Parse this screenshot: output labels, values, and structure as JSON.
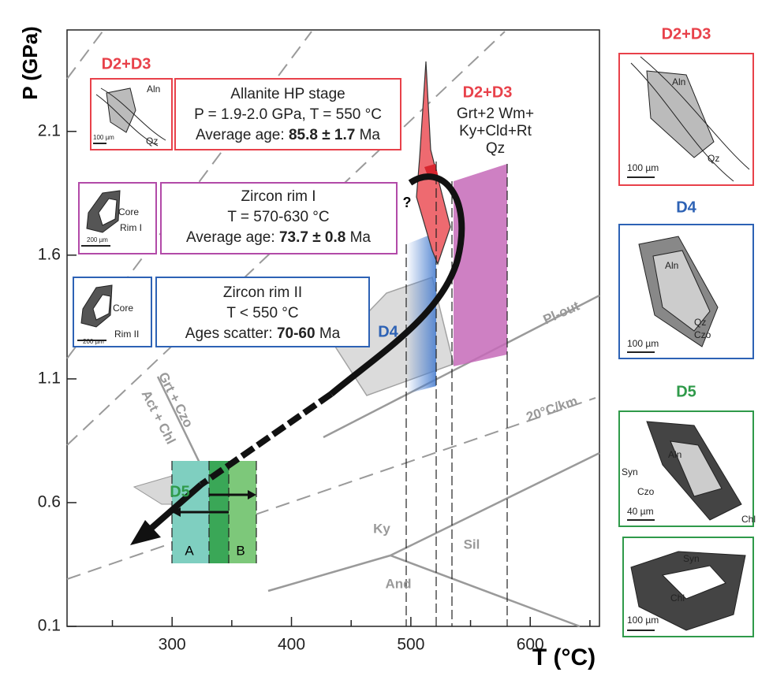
{
  "chart_data": {
    "type": "pt-diagram",
    "xlabel": "T (°C)",
    "ylabel": "P (GPa)",
    "xlim": [
      212,
      658
    ],
    "ylim": [
      0.1,
      2.51
    ],
    "xticks": [
      300,
      400,
      500,
      600
    ],
    "xminorticks": [
      250,
      350,
      450,
      550,
      650
    ],
    "yticks": [
      0.1,
      0.6,
      1.1,
      1.6,
      2.1
    ]
  },
  "boxes": [
    {
      "stage": "D2+D3",
      "title": "Allanite HP stage",
      "line2": "P = 1.9-2.0 GPa, T = 550 °C",
      "age_pre": "Average age: ",
      "age_bold": "85.8 ± 1.7",
      "age_post": " Ma",
      "inset": [
        "Aln",
        "Qz",
        "100 µm"
      ]
    },
    {
      "title": "Zircon rim I",
      "line2": "T = 570-630 °C",
      "age_pre": "Average age: ",
      "age_bold": "73.7 ± 0.8",
      "age_post": " Ma",
      "inset": [
        "Core",
        "Rim I",
        "200 µm"
      ]
    },
    {
      "title": "Zircon rim II",
      "line2": "T < 550 °C",
      "age_pre": "Ages scatter: ",
      "age_bold": "70-60",
      "age_post": " Ma",
      "inset": [
        "Core",
        "Rim II",
        "200 µm"
      ]
    }
  ],
  "fields": {
    "stage": "D2+D3",
    "assemblage": [
      "Grt+2 Wm+",
      "Ky+Cld+Rt",
      "Qz"
    ],
    "question": "?",
    "d4": "D4",
    "d5": "D5",
    "a": "A",
    "b": "B",
    "plout": "Pl-out",
    "geotherm": "20°C/km",
    "grtczo": "Grt + Czo",
    "actchl": "Act + Chl",
    "ky": "Ky",
    "sil": "Sil",
    "and": "And"
  },
  "panels": [
    {
      "title": "D2+D3",
      "labels": [
        "Aln",
        "Qz",
        "100 µm"
      ]
    },
    {
      "title": "D4",
      "labels": [
        "Aln",
        "Qz",
        "Czo",
        "100 µm"
      ]
    },
    {
      "title": "D5",
      "labels": [
        "Syn",
        "Aln",
        "Czo",
        "40 µm",
        "Chl"
      ]
    },
    {
      "labels": [
        "Syn",
        "Chl",
        "100 µm"
      ]
    }
  ]
}
